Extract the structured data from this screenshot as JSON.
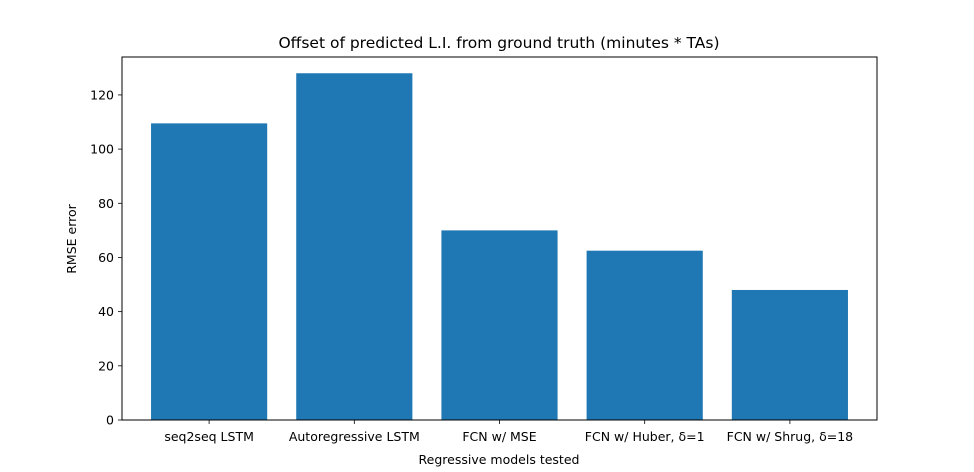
{
  "chart_data": {
    "type": "bar",
    "title": "Offset of predicted L.I. from ground truth (minutes * TAs)",
    "xlabel": "Regressive models tested",
    "ylabel": "RMSE error",
    "categories": [
      "seq2seq LSTM",
      "Autoregressive LSTM",
      "FCN w/ MSE",
      "FCN w/ Huber, δ=1",
      "FCN w/ Shrug, δ=18"
    ],
    "values": [
      109.5,
      128,
      70,
      62.5,
      48
    ],
    "ylim": [
      0,
      134
    ],
    "yticks": [
      0,
      20,
      40,
      60,
      80,
      100,
      120
    ],
    "bar_color": "#1f77b4",
    "grid": false,
    "legend": "none"
  }
}
